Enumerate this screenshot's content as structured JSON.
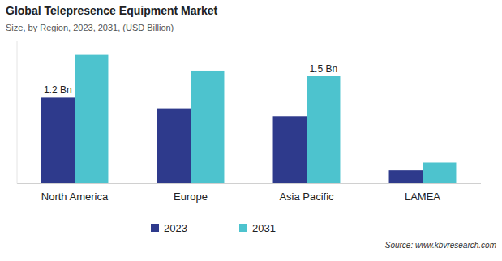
{
  "chart_data": {
    "type": "bar",
    "title": "Global Telepresence Equipment Market",
    "subtitle": "Size, by Region, 2023, 2031, (USD Billion)",
    "source": "Source: www.kbvresearch.com",
    "categories": [
      "North America",
      "Europe",
      "Asia Pacific",
      "LAMEA"
    ],
    "series": [
      {
        "name": "2023",
        "color": "#2e3a8c",
        "values": [
          1.2,
          1.05,
          0.94,
          0.18
        ],
        "value_labels": [
          "1.2 Bn",
          null,
          null,
          null
        ]
      },
      {
        "name": "2031",
        "color": "#4dc3ce",
        "values": [
          1.8,
          1.58,
          1.5,
          0.29
        ],
        "value_labels": [
          null,
          null,
          "1.5 Bn",
          null
        ]
      }
    ],
    "ylim": [
      0,
      2
    ],
    "yticks": [],
    "grid": false,
    "legend": "bottom",
    "data_labels": true,
    "tick_labels": "x"
  }
}
